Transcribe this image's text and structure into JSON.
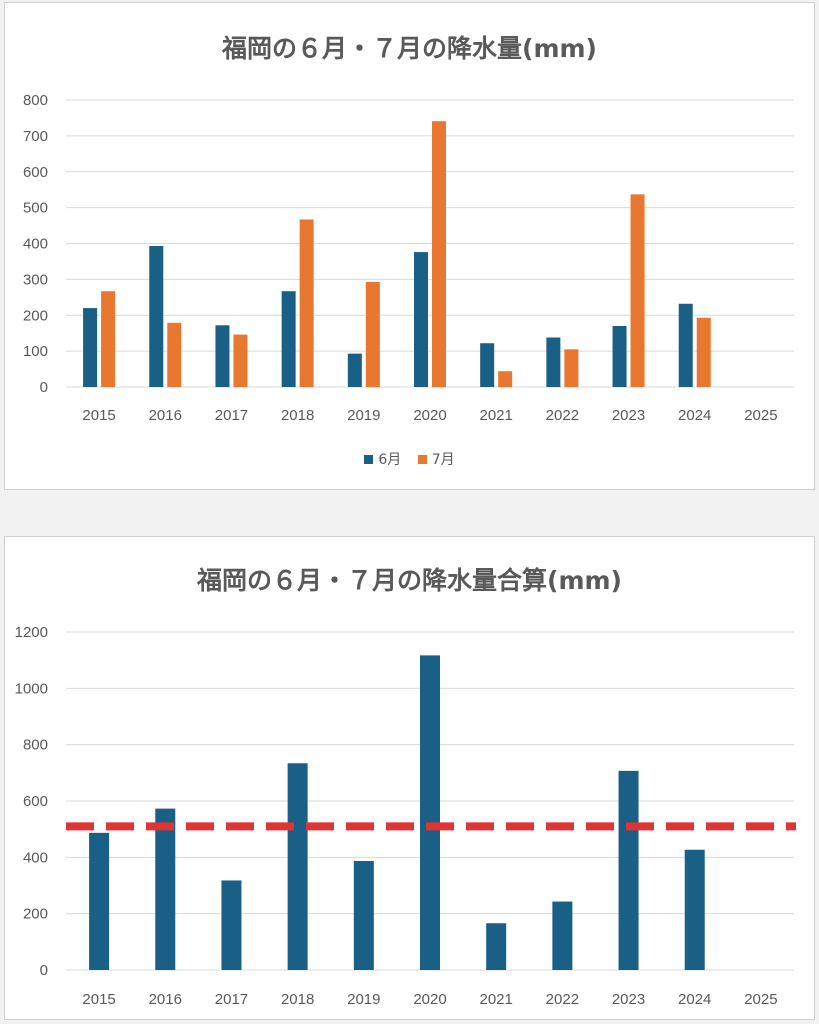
{
  "colors": {
    "june": "#1a5f85",
    "july": "#e8782f",
    "average_line": "#e03434",
    "grid": "#d9d9d9",
    "text": "#595959"
  },
  "chart_data": [
    {
      "type": "bar",
      "title": "福岡の６月・７月の降水量(mm)",
      "categories": [
        "2015",
        "2016",
        "2017",
        "2018",
        "2019",
        "2020",
        "2021",
        "2022",
        "2023",
        "2024",
        "2025"
      ],
      "series": [
        {
          "name": "6月",
          "color": "#1a5f85",
          "values": [
            220,
            393,
            172,
            267,
            93,
            376,
            122,
            138,
            170,
            232,
            null
          ]
        },
        {
          "name": "7月",
          "color": "#e8782f",
          "values": [
            267,
            179,
            146,
            467,
            293,
            741,
            44,
            105,
            537,
            193,
            null
          ]
        }
      ],
      "ylim": [
        0,
        800
      ],
      "yticks": [
        0,
        100,
        200,
        300,
        400,
        500,
        600,
        700,
        800
      ],
      "grid": true,
      "legend": "bottom"
    },
    {
      "type": "bar",
      "title": "福岡の６月・７月の降水量合算(mm)",
      "categories": [
        "2015",
        "2016",
        "2017",
        "2018",
        "2019",
        "2020",
        "2021",
        "2022",
        "2023",
        "2024",
        "2025"
      ],
      "series": [
        {
          "color": "#1a5f85",
          "values": [
            487,
            573,
            318,
            734,
            387,
            1117,
            166,
            243,
            707,
            427,
            null
          ]
        }
      ],
      "ylim": [
        0,
        1200
      ],
      "yticks": [
        0,
        200,
        400,
        600,
        800,
        1000,
        1200
      ],
      "reference_line": {
        "value": 510,
        "style": "dashed",
        "color": "#e03434"
      },
      "grid": true
    }
  ]
}
